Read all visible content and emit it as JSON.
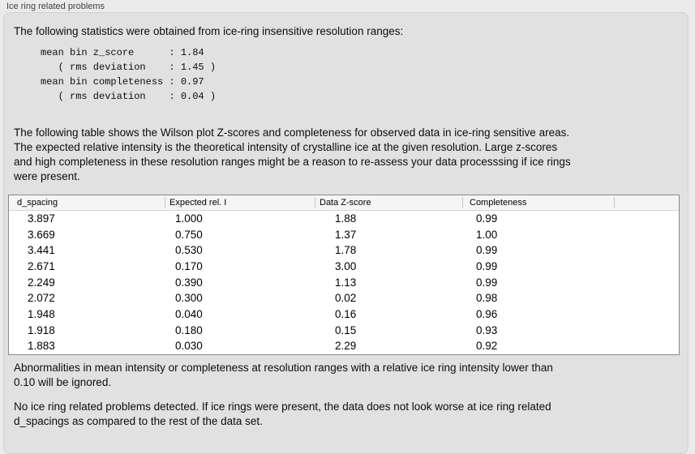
{
  "panel": {
    "title": "Ice ring related problems"
  },
  "intro": {
    "text": "The following statistics were obtained from ice-ring insensitive resolution ranges:"
  },
  "stats": {
    "lines": [
      "mean bin z_score      : 1.84",
      "   ( rms deviation    : 1.45 )",
      "mean bin completeness : 0.97",
      "   ( rms deviation    : 0.04 )"
    ],
    "mean_bin_z_score": "1.84",
    "z_score_rms_deviation": "1.45",
    "mean_bin_completeness": "0.97",
    "completeness_rms_deviation": "0.04"
  },
  "table_intro": {
    "lines": [
      "The following table shows the Wilson plot Z-scores and completeness for observed data in ice-ring sensitive areas.",
      "The expected relative intensity is the theoretical intensity of crystalline ice at the given resolution. Large z-scores",
      "and high completeness in these resolution ranges might be a reason to re-assess your data processsing if ice rings",
      "were present."
    ]
  },
  "table": {
    "columns": [
      "d_spacing",
      "Expected rel. I",
      "Data Z-score",
      "Completeness",
      ""
    ],
    "rows": [
      [
        "3.897",
        "1.000",
        "1.88",
        "0.99"
      ],
      [
        "3.669",
        "0.750",
        "1.37",
        "1.00"
      ],
      [
        "3.441",
        "0.530",
        "1.78",
        "0.99"
      ],
      [
        "2.671",
        "0.170",
        "3.00",
        "0.99"
      ],
      [
        "2.249",
        "0.390",
        "1.13",
        "0.99"
      ],
      [
        "2.072",
        "0.300",
        "0.02",
        "0.98"
      ],
      [
        "1.948",
        "0.040",
        "0.16",
        "0.96"
      ],
      [
        "1.918",
        "0.180",
        "0.15",
        "0.93"
      ],
      [
        "1.883",
        "0.030",
        "2.29",
        "0.92"
      ]
    ]
  },
  "notes": {
    "ignore": {
      "lines": [
        "Abnormalities in mean intensity or completeness at resolution ranges with a relative ice ring intensity lower than",
        "0.10 will be ignored."
      ]
    },
    "conclusion": {
      "lines": [
        "No ice ring related problems detected. If ice rings were present, the data does not look worse at ice ring related",
        "d_spacings as compared to the rest of the data set."
      ]
    }
  },
  "colors": {
    "window_bg": "#ebebeb",
    "panel_bg": "#e1e1e1",
    "table_bg": "#ffffff",
    "table_header_bg": "#f5f5f5",
    "table_border": "#8a8a8a",
    "text": "#0d0d0d"
  }
}
